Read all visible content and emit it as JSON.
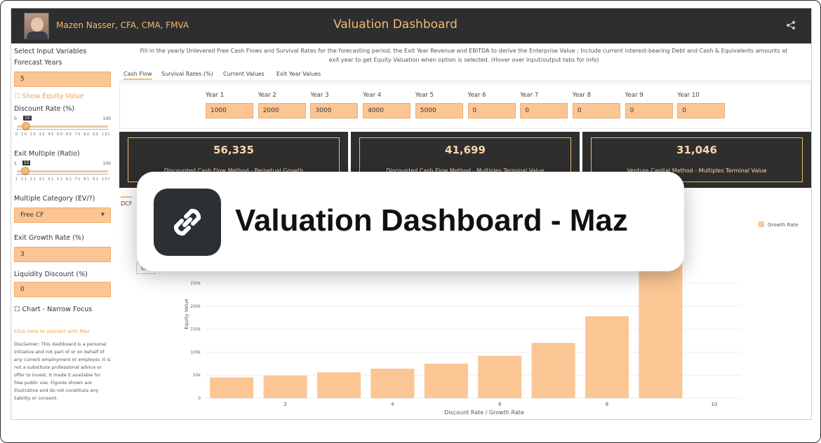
{
  "header": {
    "author": "Mazen Nasser, CFA, CMA, FMVA",
    "title": "Valuation Dashboard",
    "share_icon": "share-icon"
  },
  "sidebar": {
    "select_label": "Select Input Variables",
    "forecast_label": "Forecast Years",
    "forecast_value": "5",
    "show_equity_label": "☐ Show Equity Value",
    "discount_label": "Discount Rate (%)",
    "discount_slider": {
      "min": "0",
      "max": "100",
      "value": "10",
      "fraction": 0.1,
      "ticks": "0 10 20 30 40 50 60 70 80 90 100"
    },
    "exit_multiple_label": "Exit Multiple (Ratio)",
    "exit_slider": {
      "min": "1",
      "max": "100",
      "value": "10",
      "fraction": 0.09,
      "ticks": "1 11 21 31 41 51 61 71 81 91 100"
    },
    "multiple_category_label": "Multiple Category (EV/?)",
    "multiple_category_value": "Free CF",
    "exit_growth_label": "Exit Growth Rate (%)",
    "exit_growth_value": "3",
    "liquidity_label": "Liquidity Discount (%)",
    "liquidity_value": "0",
    "chart_focus_label": "☐ Chart - Narrow Focus",
    "connect_link": "Click here to connect with Maz",
    "disclaimer": "Disclaimer: This dashboard is a personal initiative and not part of or on behalf of any current employment or employer. It is not a substitute professional advice or offer to invest. It made it available for free public use. Figures shown are illustrative and do not constitute any liability or consent."
  },
  "main": {
    "instructions_line1": "Fill in the yearly Unlevered Free Cash Flows and Survival Rates for the forecasting period, the Exit Year Revenue and EBITDA to derive the Enterprise Value ; Include current interest-bearing Debt and Cash & Equivalents amounts at",
    "instructions_line2": "exit year to get Equity Valuation when option is selected. (Hover over input/output tabs for info)",
    "tabs": [
      "Cash Flow",
      "Survival Rates (%)",
      "Current Values",
      "Exit Year Values"
    ],
    "years": [
      {
        "label": "Year 1",
        "value": "1000"
      },
      {
        "label": "Year 2",
        "value": "2000"
      },
      {
        "label": "Year 3",
        "value": "3000"
      },
      {
        "label": "Year 4",
        "value": "4000"
      },
      {
        "label": "Year 5",
        "value": "5000"
      },
      {
        "label": "Year 6",
        "value": "0"
      },
      {
        "label": "Year 7",
        "value": "0"
      },
      {
        "label": "Year 8",
        "value": "0"
      },
      {
        "label": "Year 9",
        "value": "0"
      },
      {
        "label": "Year 10",
        "value": "0"
      }
    ],
    "cards": [
      {
        "value": "56,335",
        "desc": "Discounted Cash Flow Method - Perpetual Growth"
      },
      {
        "value": "41,699",
        "desc": "Discounted Cash Flow Method - Multiples Terminal Value"
      },
      {
        "value": "31,046",
        "desc": "Venture Capital Method - Multiples Terminal Value"
      }
    ],
    "lower_tab": "DCF",
    "sub_tab": "Gro"
  },
  "chart_data": {
    "type": "bar",
    "x": [
      1,
      2,
      3,
      4,
      5,
      6,
      7,
      8,
      9
    ],
    "values": [
      45000,
      49000,
      56000,
      64000,
      75000,
      92000,
      120000,
      178000,
      320000
    ],
    "xlabel": "Discount Rate / Growth Rate",
    "ylabel": "Equity Value",
    "series_name": "Growth Rate",
    "ylim": [
      0,
      320000
    ],
    "y_ticks": [
      {
        "v": 0,
        "t": "0"
      },
      {
        "v": 50000,
        "t": "50k"
      },
      {
        "v": 100000,
        "t": "100k"
      },
      {
        "v": 150000,
        "t": "150k"
      },
      {
        "v": 200000,
        "t": "200k"
      },
      {
        "v": 250000,
        "t": "250k"
      }
    ],
    "x_ticks": [
      {
        "v": 2,
        "t": "2"
      },
      {
        "v": 4,
        "t": "4"
      },
      {
        "v": 6,
        "t": "6"
      },
      {
        "v": 8,
        "t": "8"
      },
      {
        "v": 10,
        "t": "10"
      }
    ],
    "xlim": [
      0.5,
      10.5
    ],
    "legend_position": "top-right",
    "bar_color": "#fbc594"
  },
  "popup": {
    "icon": "link-icon",
    "text": "Valuation Dashboard - Maz"
  }
}
